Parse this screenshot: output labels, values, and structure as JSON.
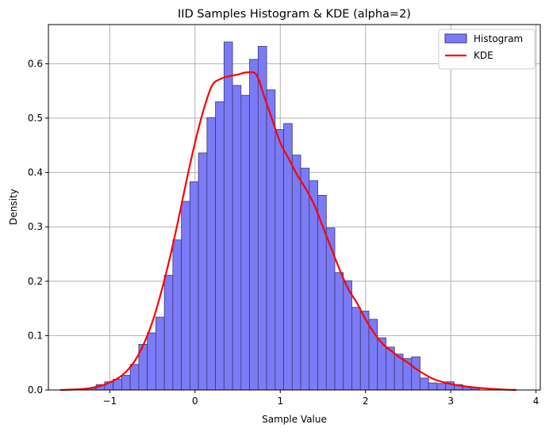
{
  "chart_data": {
    "type": "bar",
    "title": "IID Samples Histogram & KDE (alpha=2)",
    "xlabel": "Sample Value",
    "ylabel": "Density",
    "xlim": [
      -1.72,
      4.05
    ],
    "ylim": [
      0.0,
      0.672
    ],
    "xticks": [
      -1,
      0,
      1,
      2,
      3,
      4
    ],
    "yticks": [
      0.0,
      0.1,
      0.2,
      0.3,
      0.4,
      0.5,
      0.6
    ],
    "grid": true,
    "legend_position": "top-right",
    "colors": {
      "histogram_fill": "#7b7bf7",
      "histogram_edge": "#3a3a6e",
      "kde_line": "#ff0000",
      "grid": "#b0b0b0"
    },
    "series": [
      {
        "name": "Histogram",
        "type": "bar",
        "bin_edges": [
          -1.26,
          -1.16,
          -1.06,
          -0.96,
          -0.86,
          -0.76,
          -0.66,
          -0.56,
          -0.46,
          -0.36,
          -0.26,
          -0.16,
          -0.06,
          0.04,
          0.14,
          0.24,
          0.34,
          0.44,
          0.54,
          0.64,
          0.74,
          0.84,
          0.94,
          1.04,
          1.14,
          1.24,
          1.34,
          1.44,
          1.54,
          1.64,
          1.74,
          1.84,
          1.94,
          2.04,
          2.14,
          2.24,
          2.34,
          2.44,
          2.54,
          2.64,
          2.74,
          2.84,
          2.94,
          3.04,
          3.14,
          3.24,
          3.34
        ],
        "values": [
          0.003,
          0.01,
          0.015,
          0.02,
          0.027,
          0.047,
          0.084,
          0.105,
          0.134,
          0.211,
          0.276,
          0.347,
          0.383,
          0.436,
          0.501,
          0.53,
          0.64,
          0.56,
          0.542,
          0.608,
          0.632,
          0.552,
          0.479,
          0.49,
          0.432,
          0.408,
          0.385,
          0.358,
          0.298,
          0.216,
          0.201,
          0.152,
          0.145,
          0.13,
          0.096,
          0.079,
          0.066,
          0.058,
          0.061,
          0.022,
          0.013,
          0.012,
          0.015,
          0.01,
          0.006,
          0.004
        ]
      },
      {
        "name": "KDE",
        "type": "line",
        "x": [
          -1.58,
          -1.3,
          -1.1,
          -1.0,
          -0.9,
          -0.8,
          -0.7,
          -0.6,
          -0.5,
          -0.4,
          -0.3,
          -0.2,
          -0.1,
          0.0,
          0.1,
          0.2,
          0.3,
          0.4,
          0.5,
          0.6,
          0.7,
          0.75,
          0.8,
          0.9,
          1.0,
          1.1,
          1.2,
          1.3,
          1.4,
          1.5,
          1.6,
          1.7,
          1.8,
          1.9,
          2.0,
          2.1,
          2.2,
          2.3,
          2.4,
          2.5,
          2.6,
          2.8,
          3.0,
          3.2,
          3.4,
          3.6,
          3.77
        ],
        "y": [
          0.0,
          0.002,
          0.008,
          0.014,
          0.022,
          0.035,
          0.055,
          0.085,
          0.125,
          0.178,
          0.24,
          0.31,
          0.385,
          0.455,
          0.515,
          0.56,
          0.572,
          0.577,
          0.58,
          0.584,
          0.583,
          0.57,
          0.545,
          0.5,
          0.455,
          0.425,
          0.395,
          0.37,
          0.34,
          0.3,
          0.26,
          0.22,
          0.185,
          0.16,
          0.13,
          0.105,
          0.085,
          0.072,
          0.06,
          0.05,
          0.038,
          0.02,
          0.011,
          0.006,
          0.003,
          0.001,
          0.0
        ]
      }
    ]
  }
}
